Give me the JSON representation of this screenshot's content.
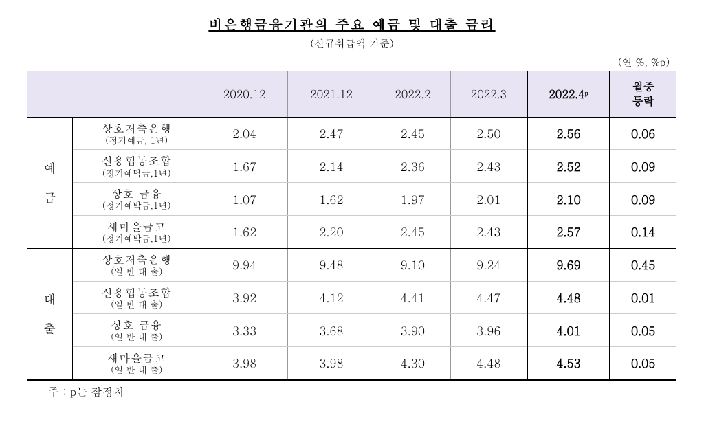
{
  "title": "비은행금융기관의 주요 예금 및 대출 금리",
  "subtitle": "(신규취급액 기준)",
  "unit": "(연 %, %p)",
  "columns": [
    "2020.12",
    "2021.12",
    "2022.2",
    "2022.3"
  ],
  "highlight_col": "2022.4ᵖ",
  "change_col": "월중\n등락",
  "sections": [
    {
      "label": "예",
      "label2": "금",
      "rows": [
        {
          "name": "상호저축은행",
          "sub": "(정기예금, 1년)",
          "values": [
            "2.04",
            "2.47",
            "2.45",
            "2.50"
          ],
          "highlight": "2.56",
          "change": "0.06"
        },
        {
          "name": "신용협동조합",
          "sub": "(정기예탁금,1년)",
          "values": [
            "1.67",
            "2.14",
            "2.36",
            "2.43"
          ],
          "highlight": "2.52",
          "change": "0.09"
        },
        {
          "name": "상호 금융",
          "sub": "(정기예탁금,1년)",
          "values": [
            "1.07",
            "1.62",
            "1.97",
            "2.01"
          ],
          "highlight": "2.10",
          "change": "0.09"
        },
        {
          "name": "새마을금고",
          "sub": "(정기예탁금,1년)",
          "values": [
            "1.62",
            "2.20",
            "2.45",
            "2.43"
          ],
          "highlight": "2.57",
          "change": "0.14"
        }
      ]
    },
    {
      "label": "대",
      "label2": "출",
      "rows": [
        {
          "name": "상호저축은행",
          "sub": "(일 반 대 출)",
          "values": [
            "9.94",
            "9.48",
            "9.10",
            "9.24"
          ],
          "highlight": "9.69",
          "change": "0.45"
        },
        {
          "name": "신용협동조합",
          "sub": "(일 반 대 출)",
          "values": [
            "3.92",
            "4.12",
            "4.41",
            "4.47"
          ],
          "highlight": "4.48",
          "change": "0.01"
        },
        {
          "name": "상호 금융",
          "sub": "(일 반 대 출)",
          "values": [
            "3.33",
            "3.68",
            "3.90",
            "3.96"
          ],
          "highlight": "4.01",
          "change": "0.05"
        },
        {
          "name": "새마을금고",
          "sub": "(일 반 대 출)",
          "values": [
            "3.98",
            "3.98",
            "4.30",
            "4.48"
          ],
          "highlight": "4.53",
          "change": "0.05"
        }
      ]
    }
  ],
  "footnote": "주 : p는 잠정치"
}
